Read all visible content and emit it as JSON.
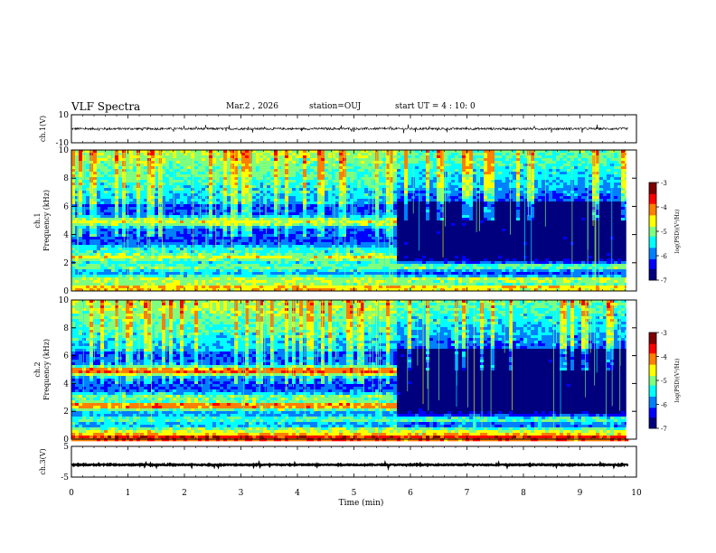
{
  "header": {
    "title": "VLF Spectra",
    "date": "Mar.2 , 2026",
    "station": "station=OUJ",
    "start_ut": "start UT = 4 : 10: 0"
  },
  "chart_data": [
    {
      "type": "line",
      "name": "ch1-waveform",
      "ylabel": "ch.1(V)",
      "ylim": [
        -10,
        10
      ],
      "yticks": [
        "10",
        "-10"
      ],
      "xlim": [
        0,
        10
      ],
      "baseline": 0,
      "signal_end_min": 9.85
    },
    {
      "type": "heatmap",
      "name": "ch1-spectrogram",
      "ylabel": "ch.1",
      "ylabel2": "Frequency (kHz)",
      "ylim": [
        0,
        10
      ],
      "yticks": [
        "0",
        "2",
        "4",
        "6",
        "8",
        "10"
      ],
      "xlim": [
        0,
        10
      ],
      "transition_min": 5.7,
      "bands_khz": [
        {
          "f": 5.0,
          "level": -4.6,
          "until": 5.7
        },
        {
          "f": 2.5,
          "level": -4.6,
          "until": 5.7
        },
        {
          "f": 3.0,
          "level": -5.3,
          "until": 5.7
        },
        {
          "f": 1.8,
          "level": -5.0,
          "until": 9.8
        },
        {
          "f": 0.9,
          "level": -4.8,
          "until": 9.8
        },
        {
          "f": 0.3,
          "level": -4.3,
          "until": 9.8
        }
      ],
      "colorbar": {
        "label": "log(PSD)(V²/Hz)",
        "range": [
          -7,
          -3
        ],
        "ticks": [
          "-3",
          "-4",
          "-5",
          "-6",
          "-7"
        ]
      }
    },
    {
      "type": "heatmap",
      "name": "ch2-spectrogram",
      "ylabel": "ch.2",
      "ylabel2": "Frequency (kHz)",
      "ylim": [
        0,
        10
      ],
      "yticks": [
        "0",
        "2",
        "4",
        "6",
        "8",
        "10"
      ],
      "xlim": [
        0,
        10
      ],
      "transition_min": 5.75,
      "bands_khz": [
        {
          "f": 5.0,
          "level": -3.9,
          "until": 5.75
        },
        {
          "f": 2.5,
          "level": -4.0,
          "until": 5.75
        },
        {
          "f": 3.1,
          "level": -5.0,
          "until": 5.75
        },
        {
          "f": 1.5,
          "level": -5.2,
          "until": 9.8
        },
        {
          "f": 0.7,
          "level": -4.9,
          "until": 9.8
        },
        {
          "f": 0.2,
          "level": -3.6,
          "until": 9.8
        }
      ],
      "colorbar": {
        "label": "log(PSD)(V²/Hz)",
        "range": [
          -7,
          -3
        ],
        "ticks": [
          "-3",
          "-4",
          "-5",
          "-6",
          "-7"
        ]
      }
    },
    {
      "type": "line",
      "name": "ch3-waveform",
      "ylabel": "ch.3(V)",
      "ylim": [
        -5,
        5
      ],
      "yticks": [
        "5",
        "-5"
      ],
      "xlim": [
        0,
        10
      ],
      "baseline": -1,
      "signal_end_min": 9.85
    }
  ],
  "x_axis": {
    "label": "Time (min)",
    "ticks": [
      "0",
      "1",
      "2",
      "3",
      "4",
      "5",
      "6",
      "7",
      "8",
      "9",
      "10"
    ]
  },
  "colors": {
    "colormap": [
      "#00007f",
      "#0000ff",
      "#007fff",
      "#00ffff",
      "#7fff7f",
      "#ffff00",
      "#ff7f00",
      "#ff0000",
      "#7f0000"
    ],
    "trace": "#000000"
  }
}
